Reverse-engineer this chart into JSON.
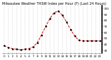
{
  "title": "Milwaukee Weather THSW Index per Hour (F) (Last 24 Hours)",
  "hours": [
    0,
    1,
    2,
    3,
    4,
    5,
    6,
    7,
    8,
    9,
    10,
    11,
    12,
    13,
    14,
    15,
    16,
    17,
    18,
    19,
    20,
    21,
    22,
    23
  ],
  "values": [
    38,
    35,
    33,
    32,
    31,
    32,
    33,
    36,
    43,
    56,
    70,
    83,
    93,
    96,
    89,
    78,
    65,
    54,
    47,
    46,
    46,
    46,
    46,
    46
  ],
  "line_color": "#dd0000",
  "marker_color": "#000000",
  "bg_color": "#ffffff",
  "plot_bg": "#ffffff",
  "grid_color": "#aaaaaa",
  "ylim": [
    25,
    105
  ],
  "yticks": [
    30,
    40,
    50,
    60,
    70,
    80,
    90,
    100
  ],
  "xlim_min": -0.5,
  "xlim_max": 23.5,
  "xticks": [
    0,
    1,
    2,
    3,
    4,
    5,
    6,
    7,
    8,
    9,
    10,
    11,
    12,
    13,
    14,
    15,
    16,
    17,
    18,
    19,
    20,
    21,
    22,
    23
  ],
  "tick_fontsize": 3.0,
  "title_fontsize": 3.5,
  "ytick_fontsize": 3.0
}
